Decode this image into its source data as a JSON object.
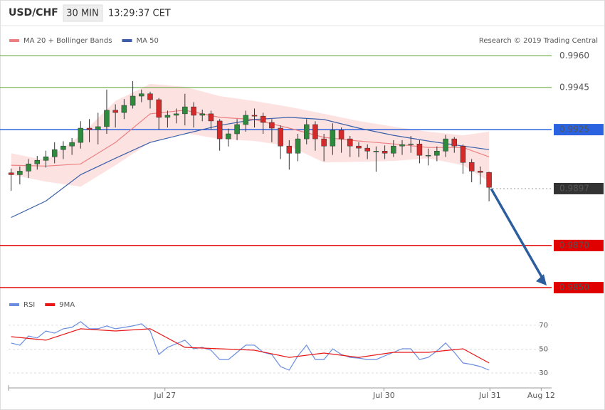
{
  "header": {
    "symbol": "USD/CHF",
    "timeframe": "30 MIN",
    "time": "13:29:37 CET"
  },
  "chart_data": [
    {
      "type": "candlestick",
      "credit": "Research © 2019 Trading Central",
      "xlim": [
        -0.3,
        62.2
      ],
      "ylim": [
        0.9848,
        0.9973
      ],
      "candles": {
        "up_color": "#2e8b3e",
        "down_color": "#d42a2a",
        "open": [
          0.99045,
          0.99036,
          0.99053,
          0.99087,
          0.99104,
          0.99121,
          0.99155,
          0.99172,
          0.99189,
          0.99257,
          0.9925,
          0.99264,
          0.99342,
          0.99331,
          0.99365,
          0.99409,
          0.9942,
          0.99392,
          0.99308,
          0.99318,
          0.99325,
          0.99358,
          0.99318,
          0.99325,
          0.99291,
          0.99206,
          0.9923,
          0.99274,
          0.99318,
          0.99314,
          0.99284,
          0.99257,
          0.99172,
          0.99138,
          0.99206,
          0.99274,
          0.99206,
          0.99172,
          0.99247,
          0.99206,
          0.99172,
          0.99162,
          0.99148,
          0.99148,
          0.99138,
          0.99172,
          0.99179,
          0.99182,
          0.99128,
          0.99128,
          0.99148,
          0.99206,
          0.99172,
          0.99094,
          0.99053,
          0.99047
        ],
        "high": [
          0.99065,
          0.99075,
          0.9911,
          0.99125,
          0.9915,
          0.9919,
          0.99195,
          0.9921,
          0.9929,
          0.993,
          0.9933,
          0.9944,
          0.9937,
          0.99395,
          0.9948,
          0.9944,
          0.9943,
          0.994,
          0.9934,
          0.9935,
          0.9942,
          0.9938,
          0.99345,
          0.9934,
          0.993,
          0.99255,
          0.993,
          0.9934,
          0.9935,
          0.9933,
          0.993,
          0.9927,
          0.992,
          0.9923,
          0.993,
          0.9929,
          0.9923,
          0.9928,
          0.9926,
          0.9922,
          0.9919,
          0.9918,
          0.9917,
          0.99175,
          0.992,
          0.992,
          0.9922,
          0.992,
          0.9916,
          0.9917,
          0.99225,
          0.99215,
          0.9918,
          0.9911,
          0.99075,
          0.9905
        ],
        "low": [
          0.9896,
          0.9899,
          0.9902,
          0.9906,
          0.9907,
          0.9909,
          0.9911,
          0.9913,
          0.9916,
          0.9919,
          0.9918,
          0.9923,
          0.9926,
          0.993,
          0.9935,
          0.9938,
          0.9935,
          0.9925,
          0.9926,
          0.9928,
          0.9927,
          0.9926,
          0.9929,
          0.9925,
          0.9915,
          0.9917,
          0.992,
          0.9924,
          0.9926,
          0.9923,
          0.9919,
          0.9911,
          0.9906,
          0.991,
          0.9918,
          0.9915,
          0.991,
          0.9913,
          0.9914,
          0.9912,
          0.9912,
          0.9911,
          0.9905,
          0.9911,
          0.9912,
          0.9913,
          0.9914,
          0.9909,
          0.9908,
          0.991,
          0.9912,
          0.9914,
          0.9904,
          0.99,
          0.9899,
          0.9891
        ],
        "close": [
          0.99036,
          0.99053,
          0.99087,
          0.99104,
          0.99121,
          0.99155,
          0.99172,
          0.99189,
          0.99257,
          0.9925,
          0.99264,
          0.99342,
          0.99331,
          0.99365,
          0.99409,
          0.9942,
          0.99392,
          0.99308,
          0.99318,
          0.99325,
          0.99358,
          0.99318,
          0.99325,
          0.99291,
          0.99206,
          0.9923,
          0.99274,
          0.99318,
          0.99314,
          0.99284,
          0.99257,
          0.99172,
          0.99138,
          0.99206,
          0.99274,
          0.99206,
          0.99172,
          0.99247,
          0.99206,
          0.99172,
          0.99162,
          0.99148,
          0.99148,
          0.99138,
          0.99172,
          0.99179,
          0.99182,
          0.99128,
          0.99128,
          0.99148,
          0.99206,
          0.99172,
          0.99094,
          0.99053,
          0.99047,
          0.98976
        ]
      },
      "series": [
        {
          "name": "MA 20 + Bollinger Bands",
          "color": "#ec8080",
          "band_color": "#fde2e2",
          "x": [
            0,
            4,
            8,
            12,
            16,
            20,
            24,
            28,
            32,
            36,
            40,
            44,
            48,
            52,
            55
          ],
          "values": [
            0.99081,
            0.99077,
            0.99087,
            0.99189,
            0.99325,
            0.99342,
            0.99308,
            0.99298,
            0.99257,
            0.99213,
            0.99196,
            0.99182,
            0.99165,
            0.99165,
            0.99121
          ],
          "upper": [
            0.99138,
            0.99104,
            0.99223,
            0.99386,
            0.99467,
            0.99453,
            0.99409,
            0.99386,
            0.99358,
            0.99325,
            0.99291,
            0.99264,
            0.9924,
            0.99223,
            0.9924
          ],
          "lower": [
            0.99036,
            0.99003,
            0.98979,
            0.99081,
            0.99189,
            0.99233,
            0.99206,
            0.99196,
            0.99172,
            0.99094,
            0.99097,
            0.99101,
            0.99114,
            0.99081,
            0.99003
          ]
        },
        {
          "name": "MA 50",
          "color": "#3a5fa8",
          "x": [
            0,
            4,
            8,
            12,
            16,
            20,
            24,
            28,
            32,
            36,
            40,
            44,
            48,
            52,
            55
          ],
          "values": [
            0.98833,
            0.98911,
            0.99036,
            0.99114,
            0.99189,
            0.9923,
            0.9927,
            0.99298,
            0.99308,
            0.99298,
            0.99257,
            0.99223,
            0.99196,
            0.99172,
            0.99155
          ]
        }
      ],
      "levels": [
        {
          "value": 0.996,
          "label": "0.9960",
          "color": "#5aa02c",
          "boxed": false,
          "dashed": false
        },
        {
          "value": 0.9945,
          "label": "0.9945",
          "color": "#5aa02c",
          "boxed": false,
          "dashed": false
        },
        {
          "value": 0.9925,
          "label": "0.9925",
          "color": "#2a62e0",
          "boxed": true,
          "dashed": false
        },
        {
          "value": 0.9897,
          "label": "0.9897",
          "color": "#333333",
          "boxed": true,
          "dashed": true
        },
        {
          "value": 0.987,
          "label": "0.9870",
          "color": "#e00000",
          "boxed": true,
          "dashed": false
        },
        {
          "value": 0.985,
          "label": "0.9850",
          "color": "#e00000",
          "boxed": true,
          "dashed": false
        }
      ],
      "arrow_color": "#2c5d9c"
    },
    {
      "type": "line",
      "xlim": [
        -0.3,
        62.2
      ],
      "ylim": [
        20.5,
        89
      ],
      "yticks": [
        30,
        50,
        70
      ],
      "xticks": [
        {
          "value": 17.7,
          "label": "Jul 27"
        },
        {
          "value": 42.9,
          "label": "Jul 30"
        },
        {
          "value": 55.1,
          "label": "Jul 31"
        },
        {
          "value": 61.0,
          "label": "Aug 12"
        }
      ],
      "series": [
        {
          "name": "RSI",
          "color": "#6a8de0",
          "x": [
            0,
            1,
            2,
            3,
            4,
            5,
            6,
            7,
            8,
            9,
            10,
            11,
            12,
            13,
            14,
            15,
            16,
            17,
            18,
            19,
            20,
            21,
            22,
            23,
            24,
            25,
            26,
            27,
            28,
            29,
            30,
            31,
            32,
            33,
            34,
            35,
            36,
            37,
            38,
            39,
            40,
            41,
            42,
            43,
            44,
            45,
            46,
            47,
            48,
            49,
            50,
            51,
            52,
            53,
            54,
            55
          ],
          "values": [
            55.1,
            53.3,
            61,
            59.3,
            65.2,
            63.4,
            67,
            68.2,
            73,
            67,
            67,
            69.4,
            67,
            68.2,
            69.4,
            71.2,
            65.2,
            45.5,
            51.5,
            54.5,
            57.5,
            50.3,
            51.5,
            49.1,
            41.3,
            41.3,
            47.3,
            53.3,
            53.3,
            47.3,
            45.5,
            35.4,
            32.4,
            44.3,
            53.3,
            41.3,
            41.3,
            50.3,
            45.5,
            43.1,
            42.5,
            41.3,
            41.3,
            44.3,
            47.3,
            50.3,
            50.3,
            41.3,
            43.1,
            48.5,
            55.1,
            47.3,
            38.4,
            37.2,
            35.4,
            32.4
          ]
        },
        {
          "name": "9MA",
          "color": "#e81818",
          "x": [
            0,
            4,
            8,
            12,
            16,
            20,
            24,
            28,
            32,
            36,
            40,
            44,
            48,
            52,
            55
          ],
          "values": [
            60.4,
            57.5,
            67,
            65.2,
            67,
            51.5,
            50.3,
            49.1,
            43.1,
            46.7,
            43.1,
            47.3,
            47.3,
            50.3,
            38.4
          ]
        }
      ]
    }
  ]
}
